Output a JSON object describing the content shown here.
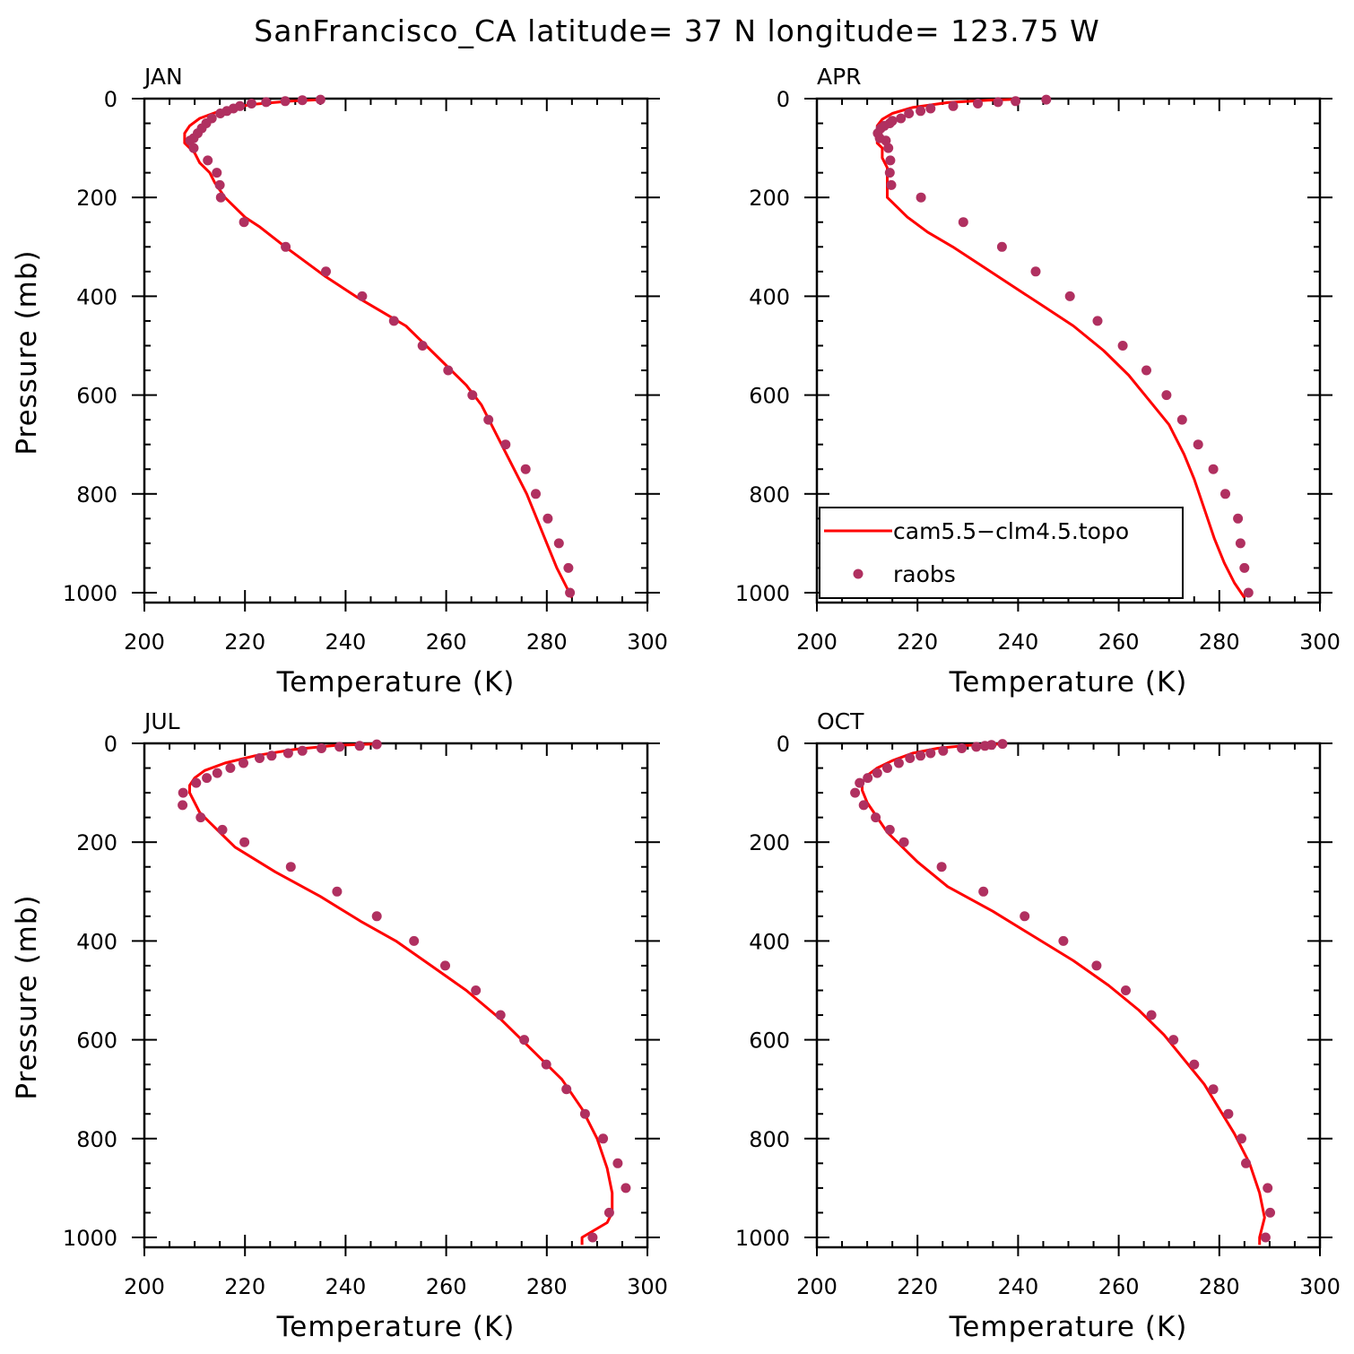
{
  "title": "SanFrancisco_CA  latitude= 37 N longitude= 123.75 W",
  "colors": {
    "model": "#ff0000",
    "obs": "#b03060",
    "axis": "#000000"
  },
  "legend": {
    "model_label": "cam5.5−clm4.5.topo",
    "obs_label": "raobs",
    "placement": "bottom-right of APR panel"
  },
  "chart_data": [
    {
      "type": "line",
      "panel_label": "JAN",
      "xlabel": "Temperature (K)",
      "ylabel": "Pressure (mb)",
      "xlim": [
        200,
        300
      ],
      "ylim": [
        1020,
        0
      ],
      "xticks": [
        "200",
        "220",
        "240",
        "260",
        "280",
        "300"
      ],
      "yticks": [
        "0",
        "200",
        "400",
        "600",
        "800",
        "1000"
      ],
      "series": [
        {
          "name": "cam5.5−clm4.5.topo",
          "style": "line",
          "x": [
            285,
            284,
            282,
            280,
            278,
            276,
            274,
            272,
            270,
            267,
            264,
            260,
            256,
            252,
            247,
            242,
            236,
            232,
            228,
            223,
            220,
            217,
            216,
            215,
            214,
            213,
            211,
            210,
            209,
            208,
            208,
            209,
            211,
            215,
            221,
            229,
            235
          ],
          "y": [
            1010,
            990,
            950,
            900,
            850,
            800,
            760,
            720,
            680,
            620,
            580,
            540,
            500,
            460,
            430,
            400,
            360,
            330,
            300,
            260,
            240,
            210,
            200,
            185,
            170,
            150,
            130,
            110,
            100,
            90,
            70,
            55,
            40,
            25,
            12,
            5,
            2
          ]
        },
        {
          "name": "raobs",
          "style": "points",
          "x": [
            284.6,
            284.3,
            282.4,
            280.2,
            277.8,
            275.8,
            271.8,
            268.4,
            265.2,
            260.4,
            255.3,
            249.6,
            243.3,
            236.1,
            228.1,
            219.8,
            215.2,
            215.0,
            214.4,
            212.6,
            209.8,
            209.1,
            209.8,
            210.6,
            211.4,
            212.3,
            213.4,
            215.1,
            216.4,
            217.7,
            219.0,
            221.3,
            224.2,
            228.0,
            231.4,
            235.0
          ],
          "y": [
            1000,
            950,
            900,
            850,
            800,
            750,
            700,
            650,
            600,
            550,
            500,
            450,
            400,
            350,
            300,
            250,
            200,
            175,
            150,
            125,
            100,
            85,
            80,
            70,
            60,
            50,
            40,
            30,
            25,
            20,
            15,
            10,
            7,
            5,
            3,
            2
          ]
        }
      ]
    },
    {
      "type": "line",
      "panel_label": "APR",
      "xlabel": "Temperature (K)",
      "ylabel": "",
      "xlim": [
        200,
        300
      ],
      "ylim": [
        1020,
        0
      ],
      "xticks": [
        "200",
        "220",
        "240",
        "260",
        "280",
        "300"
      ],
      "yticks": [
        "0",
        "200",
        "400",
        "600",
        "800",
        "1000"
      ],
      "series": [
        {
          "name": "cam5.5−clm4.5.topo",
          "style": "line",
          "x": [
            285,
            283,
            281,
            279,
            277,
            275,
            273,
            270,
            266,
            262,
            257,
            251,
            245,
            239,
            233,
            227,
            222,
            218,
            216,
            214,
            214,
            214,
            214,
            213,
            213,
            212,
            212,
            212,
            213,
            215,
            219,
            226,
            234,
            240
          ],
          "y": [
            1010,
            980,
            940,
            890,
            830,
            770,
            720,
            660,
            610,
            560,
            510,
            460,
            420,
            380,
            340,
            300,
            270,
            240,
            220,
            200,
            180,
            160,
            140,
            120,
            100,
            90,
            70,
            55,
            42,
            30,
            18,
            8,
            3,
            1
          ]
        },
        {
          "name": "raobs",
          "style": "points",
          "x": [
            285.8,
            285.0,
            284.2,
            283.7,
            281.2,
            278.8,
            275.8,
            272.6,
            269.5,
            265.5,
            260.8,
            255.8,
            250.3,
            243.5,
            236.8,
            229.1,
            220.7,
            214.8,
            214.5,
            214.6,
            214.2,
            213.7,
            212.5,
            212.1,
            212.7,
            213.4,
            214.5,
            215.0,
            216.7,
            218.3,
            220.6,
            222.6,
            227.1,
            232.0,
            236.0,
            239.5,
            245.6
          ],
          "y": [
            1000,
            950,
            900,
            850,
            800,
            750,
            700,
            650,
            600,
            550,
            500,
            450,
            400,
            350,
            300,
            250,
            200,
            175,
            150,
            125,
            100,
            85,
            80,
            70,
            60,
            55,
            50,
            45,
            40,
            30,
            25,
            20,
            15,
            10,
            7,
            5,
            2
          ]
        }
      ]
    },
    {
      "type": "line",
      "panel_label": "JUL",
      "xlabel": "Temperature (K)",
      "ylabel": "Pressure (mb)",
      "xlim": [
        200,
        300
      ],
      "ylim": [
        1020,
        0
      ],
      "xticks": [
        "200",
        "220",
        "240",
        "260",
        "280",
        "300"
      ],
      "yticks": [
        "0",
        "200",
        "400",
        "600",
        "800",
        "1000"
      ],
      "series": [
        {
          "name": "cam5.5−clm4.5.topo",
          "style": "line",
          "x": [
            287,
            287,
            292,
            293,
            293,
            292,
            290,
            287,
            283,
            277,
            271,
            264,
            257,
            250,
            243,
            235,
            226,
            218,
            215,
            213,
            211,
            210,
            209,
            209,
            210,
            212,
            216,
            222,
            230,
            238,
            246
          ],
          "y": [
            1015,
            1000,
            970,
            950,
            910,
            860,
            800,
            740,
            680,
            620,
            560,
            500,
            450,
            400,
            360,
            310,
            260,
            210,
            180,
            160,
            140,
            120,
            100,
            85,
            70,
            55,
            40,
            25,
            12,
            4,
            1
          ]
        },
        {
          "name": "raobs",
          "style": "points",
          "x": [
            289.1,
            292.4,
            295.7,
            294.1,
            291.2,
            287.6,
            283.9,
            279.9,
            275.5,
            270.8,
            265.9,
            259.8,
            253.6,
            246.2,
            238.3,
            229.1,
            219.9,
            215.5,
            211.2,
            207.6,
            207.7,
            210.3,
            212.4,
            214.5,
            217.1,
            219.7,
            222.9,
            225.3,
            228.6,
            231.4,
            235.2,
            238.8,
            242.8,
            246.2
          ],
          "y": [
            1000,
            950,
            900,
            850,
            800,
            750,
            700,
            650,
            600,
            550,
            500,
            450,
            400,
            350,
            300,
            250,
            200,
            175,
            150,
            125,
            100,
            80,
            70,
            60,
            50,
            40,
            30,
            25,
            20,
            15,
            10,
            7,
            5,
            2
          ]
        }
      ]
    },
    {
      "type": "line",
      "panel_label": "OCT",
      "xlabel": "Temperature (K)",
      "ylabel": "",
      "xlim": [
        200,
        300
      ],
      "ylim": [
        1020,
        0
      ],
      "xticks": [
        "200",
        "220",
        "240",
        "260",
        "280",
        "300"
      ],
      "yticks": [
        "0",
        "200",
        "400",
        "600",
        "800",
        "1000"
      ],
      "series": [
        {
          "name": "cam5.5−clm4.5.topo",
          "style": "line",
          "x": [
            288,
            288,
            289,
            288,
            286,
            283,
            280,
            277,
            273,
            269,
            264,
            258,
            251,
            243,
            235,
            226,
            220,
            217,
            214,
            212,
            210,
            209,
            209,
            210,
            212,
            215,
            219,
            224,
            230,
            237
          ],
          "y": [
            1015,
            1000,
            960,
            910,
            850,
            790,
            740,
            690,
            640,
            590,
            540,
            490,
            440,
            390,
            340,
            290,
            240,
            210,
            180,
            150,
            120,
            95,
            80,
            65,
            50,
            35,
            20,
            10,
            4,
            1
          ]
        },
        {
          "name": "raobs",
          "style": "points",
          "x": [
            289.2,
            290.1,
            289.6,
            285.3,
            284.4,
            281.8,
            278.8,
            275.0,
            270.9,
            266.5,
            261.4,
            255.6,
            249.0,
            241.3,
            233.1,
            224.8,
            217.3,
            214.5,
            211.7,
            209.3,
            207.6,
            208.5,
            210.1,
            212.0,
            214.0,
            216.3,
            218.5,
            220.6,
            222.6,
            225.1,
            228.8,
            231.7,
            233.4,
            234.7,
            236.9
          ],
          "y": [
            1000,
            950,
            900,
            850,
            800,
            750,
            700,
            650,
            600,
            550,
            500,
            450,
            400,
            350,
            300,
            250,
            200,
            175,
            150,
            125,
            100,
            80,
            70,
            60,
            50,
            40,
            30,
            25,
            20,
            15,
            10,
            7,
            5,
            3,
            1
          ]
        }
      ]
    }
  ]
}
